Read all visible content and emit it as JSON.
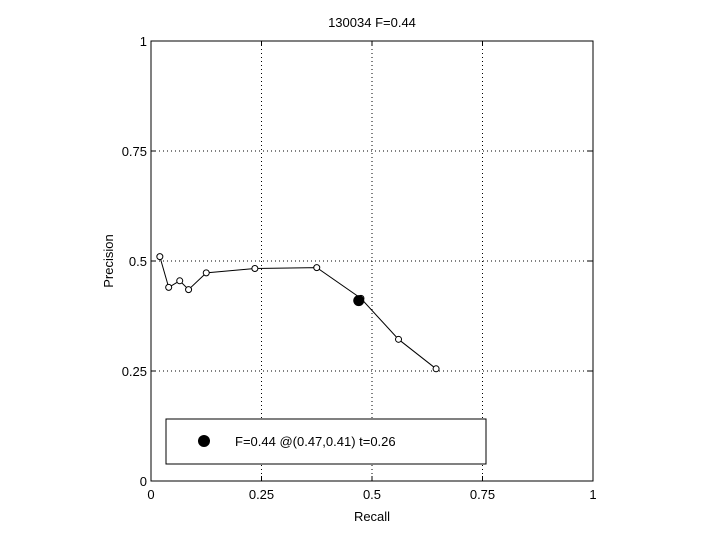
{
  "chart_data": {
    "type": "line",
    "title": "130034 F=0.44",
    "xlabel": "Recall",
    "ylabel": "Precision",
    "xlim": [
      0,
      1
    ],
    "ylim": [
      0,
      1
    ],
    "xticks": [
      0,
      0.25,
      0.5,
      0.75,
      1
    ],
    "xtick_labels": [
      "0",
      "0.25",
      "0.5",
      "0.75",
      "1"
    ],
    "yticks": [
      0,
      0.25,
      0.5,
      0.75,
      1
    ],
    "ytick_labels": [
      "0",
      "0.25",
      "0.5",
      "0.75",
      "1"
    ],
    "grid": true,
    "series": [
      {
        "x": [
          0.02,
          0.04,
          0.065,
          0.085,
          0.125,
          0.235,
          0.375,
          0.475,
          0.56,
          0.645
        ],
        "y": [
          0.51,
          0.44,
          0.455,
          0.435,
          0.473,
          0.483,
          0.485,
          0.415,
          0.322,
          0.255
        ]
      }
    ],
    "highlight": {
      "x": 0.47,
      "y": 0.41
    },
    "legend": {
      "position": "bottom",
      "label": "F=0.44 @(0.47,0.41) t=0.26"
    },
    "colors": {
      "line": "#000000",
      "grid": "#000000",
      "background": "#ffffff"
    }
  }
}
